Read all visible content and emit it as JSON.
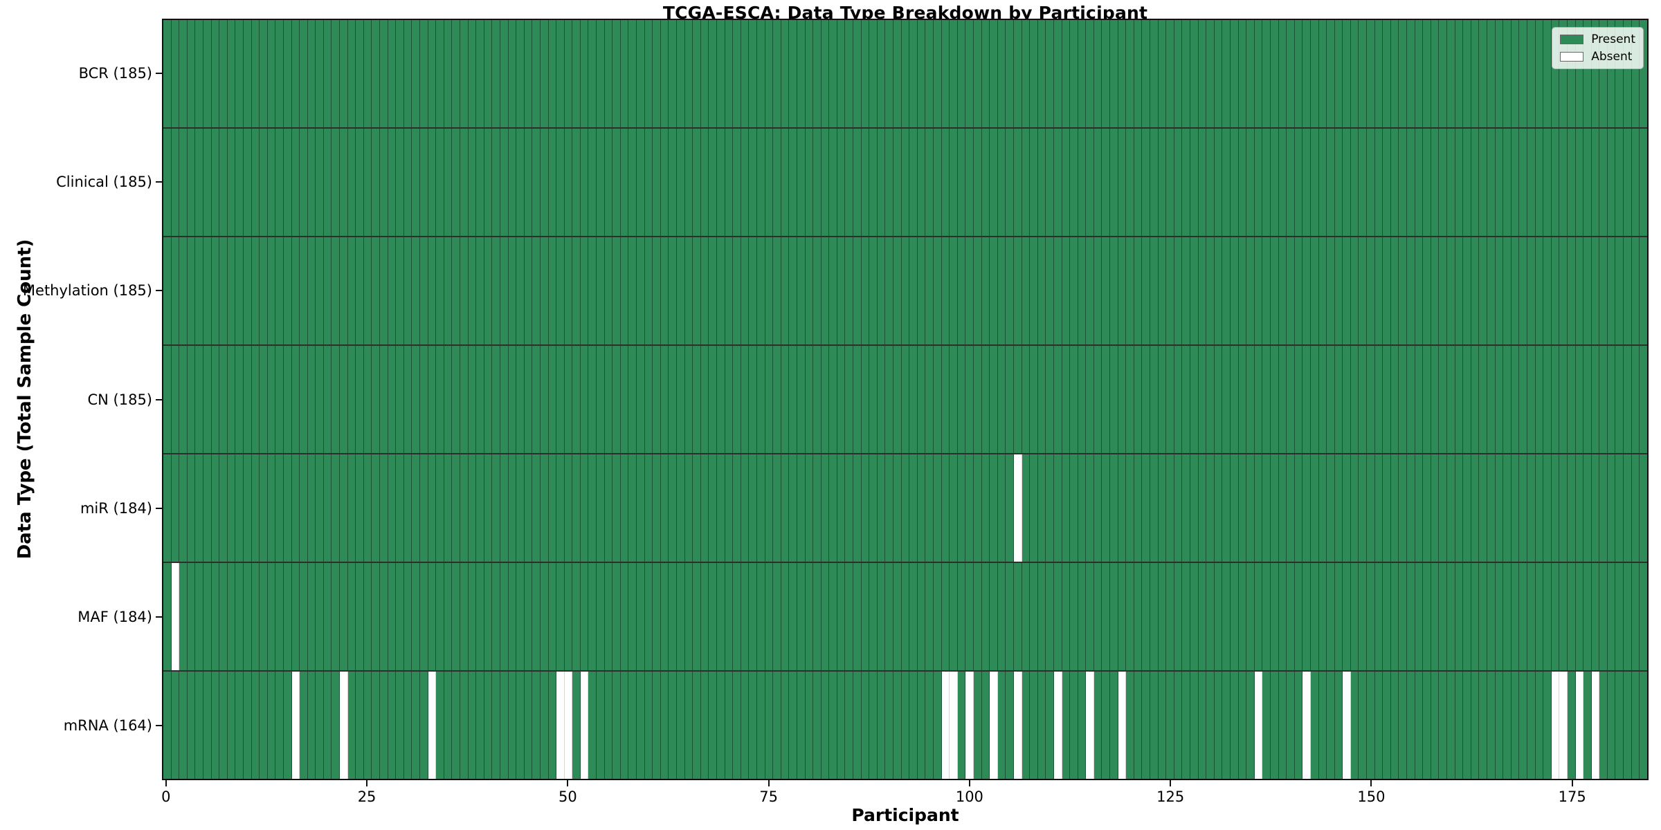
{
  "figure": {
    "kind": "matplotlib-style static chart screenshot"
  },
  "chart_data": {
    "type": "heatmap",
    "title": "TCGA-ESCA: Data Type Breakdown by Participant",
    "xlabel": "Participant",
    "ylabel": "Data Type (Total Sample Count)",
    "n_participants": 185,
    "x_ticks": [
      0,
      25,
      50,
      75,
      100,
      125,
      150,
      175
    ],
    "grid": false,
    "legend_position": "upper right",
    "colors": {
      "present": "#2E8B57",
      "absent": "#FFFFFF",
      "cell_edge_dark": "rgba(10,40,24,0.55)",
      "cell_edge_light": "rgba(0,0,0,0.16)",
      "axis": "#111111"
    },
    "legend": {
      "entries": [
        {
          "label": "Present",
          "color": "#2E8B57"
        },
        {
          "label": "Absent",
          "color": "#FFFFFF"
        }
      ]
    },
    "rows": [
      {
        "name": "BCR",
        "label": "BCR (185)",
        "count": 185,
        "absent_participants": []
      },
      {
        "name": "Clinical",
        "label": "Clinical (185)",
        "count": 185,
        "absent_participants": []
      },
      {
        "name": "Methylation",
        "label": "Methylation (185)",
        "count": 185,
        "absent_participants": []
      },
      {
        "name": "CN",
        "label": "CN (185)",
        "count": 185,
        "absent_participants": []
      },
      {
        "name": "miR",
        "label": "miR (184)",
        "count": 184,
        "absent_participants": [
          106
        ]
      },
      {
        "name": "MAF",
        "label": "MAF (184)",
        "count": 184,
        "absent_participants": [
          1
        ]
      },
      {
        "name": "mRNA",
        "label": "mRNA (164)",
        "count": 164,
        "absent_participants": [
          16,
          22,
          33,
          49,
          50,
          52,
          97,
          98,
          100,
          103,
          106,
          111,
          115,
          119,
          136,
          142,
          147,
          173,
          174,
          176,
          178
        ]
      }
    ]
  }
}
